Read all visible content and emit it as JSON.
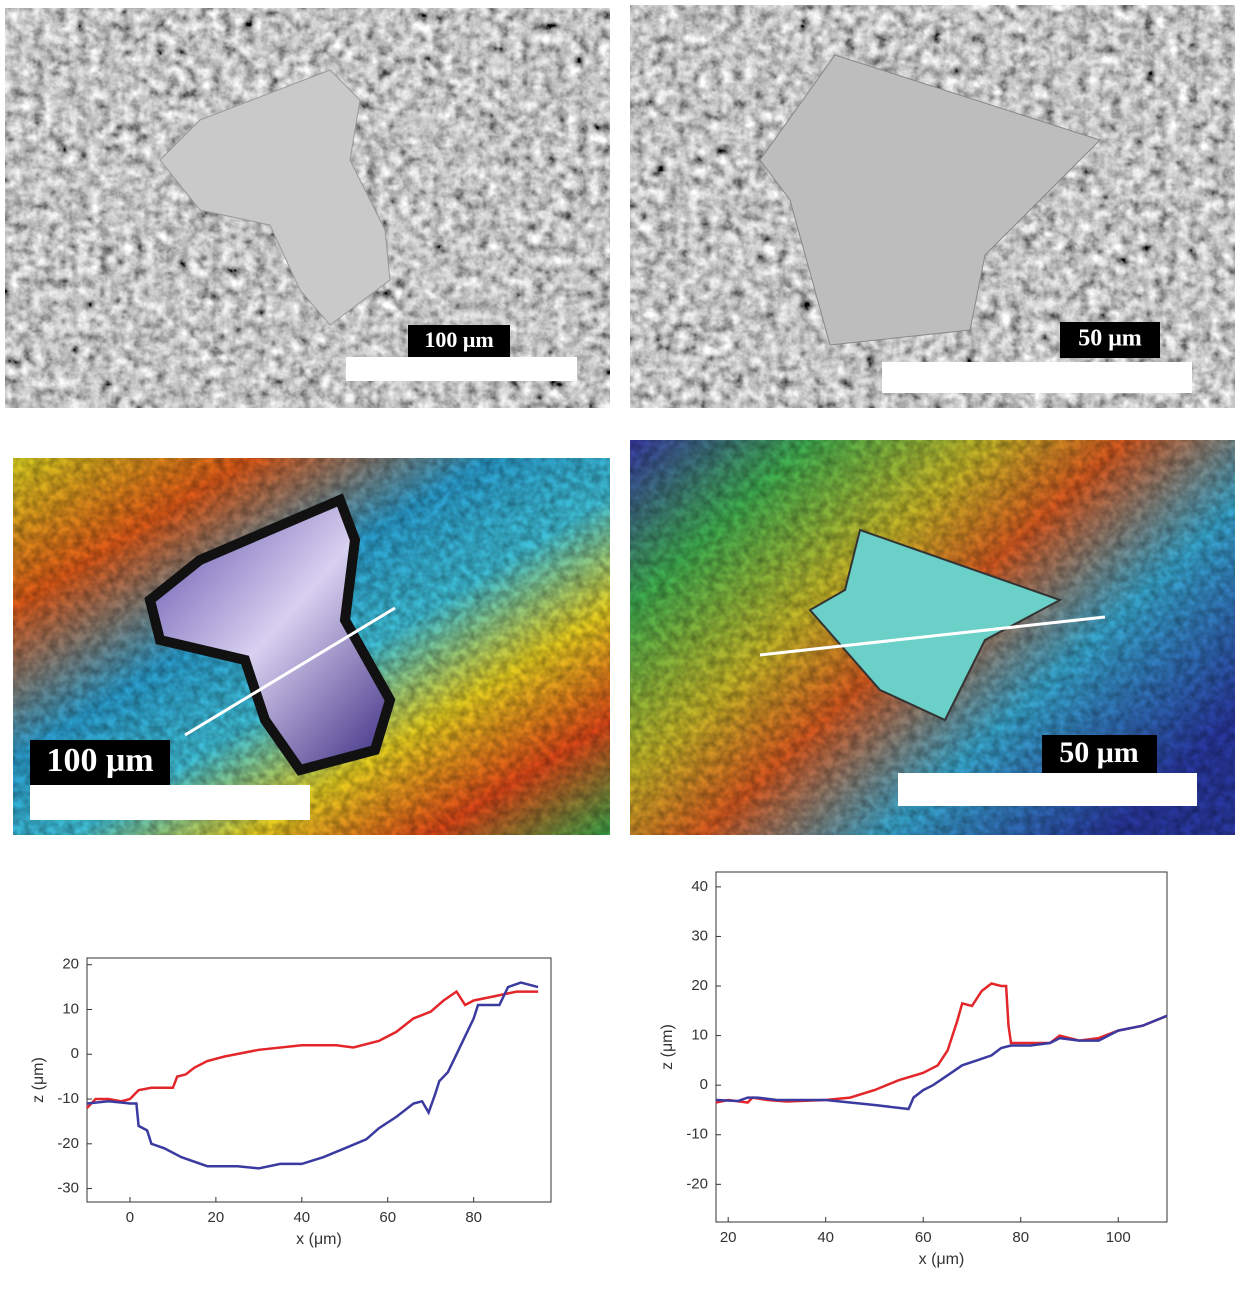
{
  "images": [
    {
      "scale_label": "100 μm"
    },
    {
      "scale_label": "50 μm"
    },
    {
      "scale_label": "100 μm"
    },
    {
      "scale_label": "50 μm"
    }
  ],
  "chart_data": [
    {
      "type": "line",
      "xlabel": "x (μm)",
      "ylabel": "z (μm)",
      "xlim": [
        -10,
        98
      ],
      "ylim": [
        -33,
        21.5
      ],
      "xticks": [
        0,
        20,
        40,
        60,
        80
      ],
      "yticks": [
        20,
        10,
        0,
        -10,
        -20,
        -30
      ],
      "series": [
        {
          "color": "#e3262a",
          "x": [
            -10,
            -8,
            -5,
            -2,
            0,
            2,
            5,
            10,
            11,
            13,
            15,
            18,
            22,
            30,
            40,
            48,
            52,
            58,
            62,
            66,
            70,
            73,
            76,
            78,
            80,
            85,
            90,
            95
          ],
          "values": [
            -12,
            -10,
            -10,
            -10.5,
            -10,
            -8,
            -7.5,
            -7.5,
            -5,
            -4.5,
            -3,
            -1.5,
            -0.5,
            1,
            2,
            2,
            1.5,
            3,
            5,
            8,
            9.5,
            12,
            14,
            11,
            12,
            13,
            14,
            14
          ]
        },
        {
          "color": "#3a3aa0",
          "x": [
            -10,
            -5,
            0,
            1.5,
            2,
            4,
            5,
            8,
            12,
            18,
            25,
            30,
            35,
            40,
            45,
            50,
            55,
            58,
            62,
            66,
            68,
            69.5,
            71,
            72,
            74,
            76,
            78,
            80,
            81,
            84,
            86,
            88,
            91,
            95
          ],
          "values": [
            -11,
            -10.5,
            -11,
            -11,
            -16,
            -17,
            -20,
            -21,
            -23,
            -25,
            -25,
            -25.5,
            -24.5,
            -24.5,
            -23,
            -21,
            -19,
            -16.5,
            -14,
            -11,
            -10.5,
            -13,
            -9,
            -6,
            -4,
            0,
            4,
            8,
            11,
            11,
            11,
            15,
            16,
            15
          ]
        }
      ]
    },
    {
      "type": "line",
      "xlabel": "x (μm)",
      "ylabel": "z (μm)",
      "xlim": [
        17.5,
        110
      ],
      "ylim": [
        -27.6,
        43
      ],
      "xticks": [
        20,
        40,
        60,
        80,
        100
      ],
      "yticks": [
        40,
        30,
        20,
        10,
        0,
        -10,
        -20
      ],
      "series": [
        {
          "color": "#e3262a",
          "x": [
            17.5,
            20,
            24,
            25,
            28,
            32,
            40,
            45,
            50,
            55,
            60,
            63,
            65,
            67,
            68,
            70,
            72,
            74,
            76,
            77,
            77.5,
            78,
            82,
            86,
            88,
            92,
            96,
            100,
            105,
            110
          ],
          "values": [
            -3.5,
            -3,
            -3.5,
            -2.5,
            -3,
            -3.3,
            -3,
            -2.5,
            -1,
            1,
            2.5,
            4,
            7,
            13,
            16.5,
            16,
            19,
            20.5,
            20,
            20,
            12,
            8.5,
            8.5,
            8.5,
            10,
            9,
            9.5,
            11,
            12,
            14
          ]
        },
        {
          "color": "#3a3aa0",
          "x": [
            17.5,
            22,
            24,
            26,
            30,
            40,
            50,
            57,
            58,
            60,
            62,
            65,
            68,
            71,
            74,
            76,
            78,
            82,
            86,
            88,
            92,
            96,
            100,
            105,
            110
          ],
          "values": [
            -3,
            -3.2,
            -2.5,
            -2.5,
            -3,
            -3,
            -4,
            -4.8,
            -2.5,
            -1,
            0,
            2,
            4,
            5,
            6,
            7.5,
            8,
            8,
            8.5,
            9.5,
            9,
            9,
            11,
            12,
            14
          ]
        }
      ]
    }
  ]
}
